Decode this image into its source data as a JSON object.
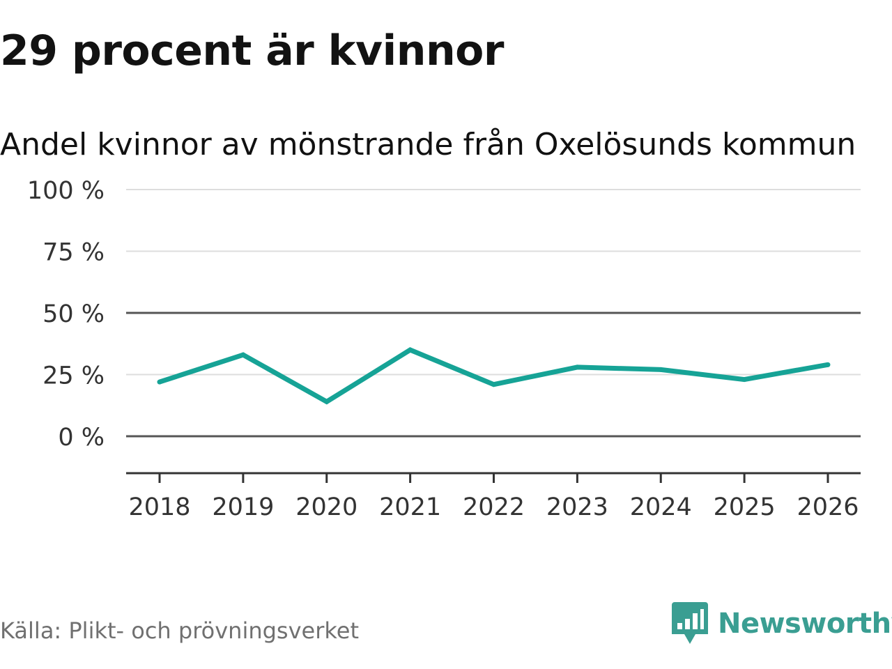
{
  "headline": "29 procent är kvinnor",
  "source": "Källa: Plikt- och prövningsverket",
  "brand": {
    "name": "Newsworthy",
    "icon": "newsworthy-logo-icon",
    "color": "#3a9e92"
  },
  "chart_data": {
    "type": "line",
    "title": "Andel kvinnor av mönstrande från Oxelösunds kommun",
    "xlabel": "",
    "ylabel": "",
    "categories": [
      "2018",
      "2019",
      "2020",
      "2021",
      "2022",
      "2023",
      "2024",
      "2025",
      "2026"
    ],
    "series": [
      {
        "name": "Andel kvinnor",
        "color": "#16a396",
        "values": [
          22,
          33,
          14,
          35,
          21,
          28,
          27,
          23,
          29
        ]
      }
    ],
    "ylim": [
      -15,
      100
    ],
    "yticks": [
      100,
      75,
      50,
      25,
      0
    ],
    "ytick_labels": [
      "100 %",
      "75 %",
      "50 %",
      "25 %",
      "0 %"
    ],
    "grid": true,
    "highlight_lines": [
      0,
      50
    ]
  }
}
